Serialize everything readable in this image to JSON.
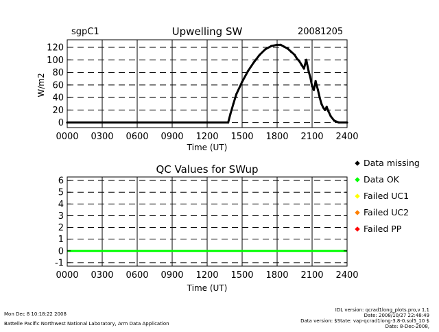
{
  "header": {
    "site": "sgpC1",
    "date": "20081205"
  },
  "chart_data": [
    {
      "type": "scatter",
      "title": "Upwelling SW",
      "xlabel": "Time (UT)",
      "ylabel": "W/m2",
      "xlim": [
        0,
        2400
      ],
      "ylim": [
        -8,
        132
      ],
      "x_ticks": [
        "0000",
        "0300",
        "0600",
        "0900",
        "1200",
        "1500",
        "1800",
        "2100",
        "2400"
      ],
      "y_ticks": [
        "0",
        "20",
        "40",
        "60",
        "80",
        "100",
        "120"
      ],
      "grid": true,
      "series": [
        {
          "color": "#000000",
          "x": [
            0,
            300,
            600,
            900,
            1200,
            1380,
            1400,
            1425,
            1450,
            1500,
            1550,
            1600,
            1650,
            1700,
            1750,
            1800,
            1830,
            1860,
            1890,
            1920,
            1950,
            1970,
            1990,
            2010,
            2030,
            2050,
            2070,
            2085,
            2100,
            2115,
            2130,
            2150,
            2165,
            2180,
            2195,
            2210,
            2225,
            2240,
            2260,
            2290,
            2330,
            2400
          ],
          "y": [
            0,
            0,
            0,
            0,
            0,
            0,
            14,
            30,
            45,
            65,
            82,
            96,
            108,
            117,
            122,
            124,
            124,
            121,
            118,
            113,
            108,
            102,
            98,
            92,
            86,
            100,
            82,
            72,
            58,
            52,
            66,
            52,
            40,
            30,
            24,
            20,
            25,
            18,
            10,
            3,
            0,
            0
          ]
        }
      ]
    },
    {
      "type": "line",
      "title": "QC Values for SWup",
      "xlabel": "Time (UT)",
      "ylabel": "",
      "xlim": [
        0,
        2400
      ],
      "ylim": [
        -1.3,
        6.3
      ],
      "x_ticks": [
        "0000",
        "0300",
        "0600",
        "0900",
        "1200",
        "1500",
        "1800",
        "2100",
        "2400"
      ],
      "y_ticks": [
        "-1",
        "0",
        "1",
        "2",
        "3",
        "4",
        "5",
        "6"
      ],
      "grid": true,
      "series": [
        {
          "name": "Data OK",
          "color": "#00ff00",
          "x": [
            0,
            2400
          ],
          "y": [
            0,
            0
          ]
        }
      ],
      "legend": {
        "placement": "right",
        "entries": [
          {
            "label": "Data missing",
            "color": "#000000"
          },
          {
            "label": "Data OK",
            "color": "#00ff00"
          },
          {
            "label": "Failed UC1",
            "color": "#ffff00"
          },
          {
            "label": "Failed UC2",
            "color": "#ff8000"
          },
          {
            "label": "Failed PP",
            "color": "#ff0000"
          }
        ]
      }
    }
  ],
  "footer": {
    "timestamp": "Mon Dec  8 10:18:22 2008",
    "lab": "Battelle Pacific Northwest National Laboratory, Arm Data Application",
    "idl_version": "IDL version: qcrad1long_plots.pro,v 1.1",
    "idl_date": "Date: 2008/10/27 22:48:49",
    "data_version": "Data version: $State: vap-qcrad1long-3.8-0.sol5_10 $",
    "data_date": "Date: 8-Dec-2008,"
  }
}
